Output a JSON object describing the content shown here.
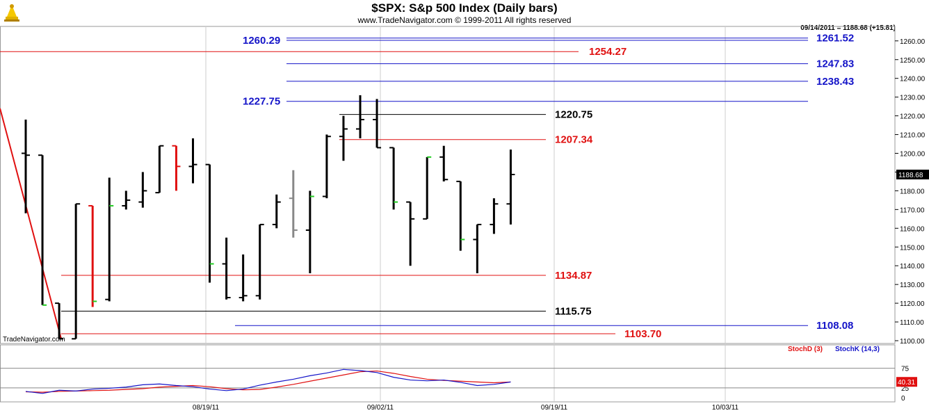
{
  "header": {
    "title": "$SPX:  S&p 500 Index  (Daily bars)",
    "subtitle": "www.TradeNavigator.com © 1999-2011 All rights reserved",
    "quote": "09/14/2011 = 1188.68 (+15.81)",
    "watermark": "TradeNavigator.com"
  },
  "colors": {
    "blue_level": "#1414c8",
    "red_level": "#e01010",
    "black_level": "#000000",
    "bar_down": "#000000",
    "bar_red": "#e01010",
    "bar_gray": "#888888",
    "close_up_tick": "#22cc22",
    "stoch_d": "#e01010",
    "stoch_k": "#1414c8"
  },
  "chart_data": [
    {
      "type": "ohlc",
      "title": "$SPX:  S&p 500 Index  (Daily bars)",
      "y_ticks": [
        "1100.00",
        "1110.00",
        "1120.00",
        "1130.00",
        "1140.00",
        "1150.00",
        "1160.00",
        "1170.00",
        "1180.00",
        "1190.00",
        "1200.00",
        "1210.00",
        "1220.00",
        "1230.00",
        "1240.00",
        "1250.00",
        "1260.00"
      ],
      "ylim": [
        1100,
        1263
      ],
      "x_ticks": [
        "08/19/11",
        "09/02/11",
        "09/19/11",
        "10/03/11"
      ],
      "last_price_label": "1188.68",
      "bars": [
        {
          "o": 1200,
          "h": 1218,
          "l": 1168,
          "c": 1199,
          "color": "black",
          "up": false
        },
        {
          "o": 1199,
          "h": 1199,
          "l": 1119,
          "c": 1119,
          "color": "black",
          "up": true
        },
        {
          "o": 1120,
          "h": 1120,
          "l": 1101,
          "c": 1101,
          "color": "black",
          "up": false
        },
        {
          "o": 1101,
          "h": 1173,
          "l": 1101,
          "c": 1173,
          "color": "black",
          "up": false
        },
        {
          "o": 1172,
          "h": 1172,
          "l": 1118,
          "c": 1121,
          "color": "red",
          "up": true
        },
        {
          "o": 1122,
          "h": 1187,
          "l": 1121,
          "c": 1172,
          "color": "black",
          "up": true
        },
        {
          "o": 1172,
          "h": 1180,
          "l": 1170,
          "c": 1175,
          "color": "black",
          "up": false
        },
        {
          "o": 1174,
          "h": 1190,
          "l": 1171,
          "c": 1180,
          "color": "black",
          "up": false
        },
        {
          "o": 1179,
          "h": 1204,
          "l": 1179,
          "c": 1204,
          "color": "black",
          "up": false
        },
        {
          "o": 1204,
          "h": 1204,
          "l": 1180,
          "c": 1193,
          "color": "red",
          "up": false
        },
        {
          "o": 1193,
          "h": 1208,
          "l": 1184,
          "c": 1194,
          "color": "black",
          "up": false
        },
        {
          "o": 1194,
          "h": 1194,
          "l": 1131,
          "c": 1141,
          "color": "black",
          "up": true
        },
        {
          "o": 1141,
          "h": 1155,
          "l": 1122,
          "c": 1123,
          "color": "black",
          "up": false
        },
        {
          "o": 1123,
          "h": 1146,
          "l": 1121,
          "c": 1124,
          "color": "black",
          "up": false
        },
        {
          "o": 1124,
          "h": 1162,
          "l": 1122,
          "c": 1162,
          "color": "black",
          "up": false
        },
        {
          "o": 1162,
          "h": 1178,
          "l": 1160,
          "c": 1174,
          "color": "black",
          "up": false
        },
        {
          "o": 1176,
          "h": 1191,
          "l": 1155,
          "c": 1159,
          "color": "gray",
          "up": false
        },
        {
          "o": 1159,
          "h": 1180,
          "l": 1136,
          "c": 1177,
          "color": "black",
          "up": true
        },
        {
          "o": 1177,
          "h": 1210,
          "l": 1176,
          "c": 1209,
          "color": "black",
          "up": false
        },
        {
          "o": 1209,
          "h": 1220,
          "l": 1196,
          "c": 1213,
          "color": "black",
          "up": false
        },
        {
          "o": 1213,
          "h": 1231,
          "l": 1208,
          "c": 1218,
          "color": "black",
          "up": false
        },
        {
          "o": 1218,
          "h": 1229,
          "l": 1203,
          "c": 1203,
          "color": "black",
          "up": false
        },
        {
          "o": 1203,
          "h": 1203,
          "l": 1170,
          "c": 1174,
          "color": "black",
          "up": true
        },
        {
          "o": 1174,
          "h": 1174,
          "l": 1140,
          "c": 1165,
          "color": "black",
          "up": false
        },
        {
          "o": 1165,
          "h": 1198,
          "l": 1165,
          "c": 1198,
          "color": "black",
          "up": true
        },
        {
          "o": 1198,
          "h": 1204,
          "l": 1185,
          "c": 1186,
          "color": "black",
          "up": false
        },
        {
          "o": 1185,
          "h": 1185,
          "l": 1148,
          "c": 1154,
          "color": "black",
          "up": true
        },
        {
          "o": 1154,
          "h": 1162,
          "l": 1136,
          "c": 1162,
          "color": "black",
          "up": false
        },
        {
          "o": 1162,
          "h": 1176,
          "l": 1157,
          "c": 1173,
          "color": "black",
          "up": false
        },
        {
          "o": 1173,
          "h": 1202,
          "l": 1162,
          "c": 1188.68,
          "color": "black",
          "up": false
        }
      ],
      "levels": [
        {
          "value": 1261.52,
          "label": "1261.52",
          "color": "blue",
          "side": "right"
        },
        {
          "value": 1260.29,
          "label": "1260.29",
          "color": "blue",
          "side": "left"
        },
        {
          "value": 1254.27,
          "label": "1254.27",
          "color": "red",
          "side": "mid"
        },
        {
          "value": 1247.83,
          "label": "1247.83",
          "color": "blue",
          "side": "right"
        },
        {
          "value": 1238.43,
          "label": "1238.43",
          "color": "blue",
          "side": "right"
        },
        {
          "value": 1227.75,
          "label": "1227.75",
          "color": "blue",
          "side": "left"
        },
        {
          "value": 1220.75,
          "label": "1220.75",
          "color": "black",
          "side": "mid"
        },
        {
          "value": 1207.34,
          "label": "1207.34",
          "color": "red",
          "side": "mid"
        },
        {
          "value": 1134.87,
          "label": "1134.87",
          "color": "red",
          "side": "mid"
        },
        {
          "value": 1115.75,
          "label": "1115.75",
          "color": "black",
          "side": "mid"
        },
        {
          "value": 1108.08,
          "label": "1108.08",
          "color": "blue",
          "side": "right"
        },
        {
          "value": 1103.7,
          "label": "1103.70",
          "color": "red",
          "side": "mid"
        }
      ],
      "trendline": {
        "from_price": 1224,
        "to_price": 1101,
        "color": "red"
      }
    },
    {
      "type": "line",
      "series": [
        {
          "name": "StochD (3)",
          "values": [
            15,
            14,
            16,
            17,
            18,
            19,
            21,
            23,
            27,
            29,
            31,
            28,
            23,
            20,
            21,
            27,
            34,
            42,
            50,
            58,
            66,
            68,
            62,
            54,
            47,
            44,
            42,
            40,
            38,
            40
          ]
        },
        {
          "name": "StochK (14,3)",
          "values": [
            16,
            11,
            19,
            17,
            22,
            24,
            27,
            33,
            35,
            31,
            28,
            22,
            18,
            22,
            32,
            40,
            47,
            56,
            63,
            72,
            69,
            64,
            52,
            45,
            43,
            45,
            39,
            31,
            34,
            40
          ]
        }
      ],
      "y_ticks": [
        "75",
        "25",
        "0"
      ],
      "ylim": [
        0,
        100
      ],
      "last_value_label": "40.31"
    }
  ]
}
